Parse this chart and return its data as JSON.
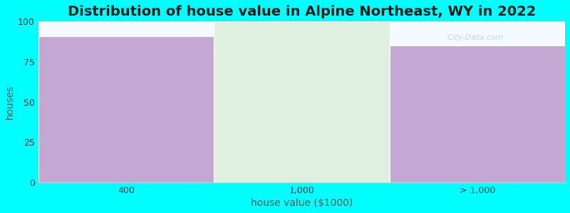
{
  "title": "Distribution of house value in Alpine Northeast, WY in 2022",
  "xlabel": "house value ($1000)",
  "ylabel": "houses",
  "categories": [
    "400",
    "1,000",
    "> 1,000"
  ],
  "values": [
    91,
    100,
    85
  ],
  "bar_colors": [
    "#c4a8d4",
    "#e0f0e0",
    "#c4a8d4"
  ],
  "ylim": [
    0,
    100
  ],
  "yticks": [
    0,
    25,
    50,
    75,
    100
  ],
  "background_color": "#00ffff",
  "plot_bg_color": "#f5faff",
  "title_fontsize": 14,
  "axis_label_fontsize": 10,
  "tick_fontsize": 9,
  "watermark": "City-Data.com"
}
